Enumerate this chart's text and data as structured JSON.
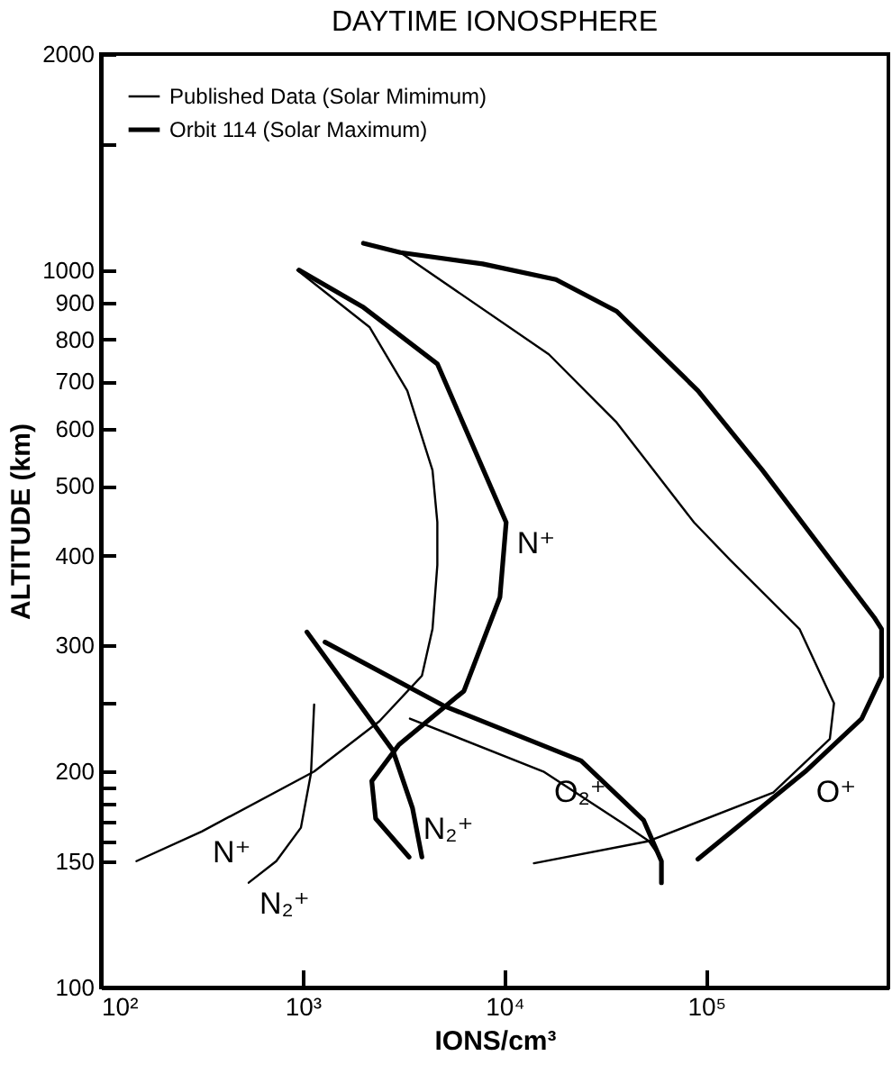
{
  "chart_data": {
    "type": "line",
    "title": "DAYTIME IONOSPHERE",
    "xlabel": "IONS/cm³",
    "ylabel": "ALTITUDE (km)",
    "log": "xy",
    "grid": false,
    "legend": "top left",
    "marker": "none",
    "xlim": [
      100,
      800000
    ],
    "xticks": [
      {
        "value": 100,
        "label": "10²"
      },
      {
        "value": 1000,
        "label": "10³"
      },
      {
        "value": 10000,
        "label": "10⁴"
      },
      {
        "value": 100000,
        "label": "10⁵"
      }
    ],
    "ylim": [
      100,
      2000
    ],
    "yticks": [
      100,
      150,
      {
        "value": 160,
        "label": null
      },
      {
        "value": 170,
        "label": null
      },
      {
        "value": 180,
        "label": null
      },
      {
        "value": 190,
        "label": null
      },
      200,
      {
        "value": 250,
        "label": null
      },
      300,
      400,
      500,
      600,
      700,
      800,
      900,
      1000,
      {
        "value": 1500,
        "label": null
      },
      2000
    ],
    "series": [
      {
        "name": "Published Data (Solar Mimimum)",
        "color": "#000000",
        "x": [
          150,
          316,
          1140,
          2400,
          3900,
          4400,
          4650,
          4650,
          4400,
          3300,
          2150,
          940,
          null,
          540,
          740,
          980,
          1100,
          1140,
          null,
          58000,
          52000,
          39000,
          15600,
          3400,
          null,
          14000,
          52000,
          215000,
          410000,
          430000,
          290000,
          132000,
          87000,
          36000,
          16600,
          3050,
          2000
        ],
        "values": [
          150,
          165,
          200,
          235,
          272,
          316,
          388,
          445,
          526,
          679,
          832,
          1000,
          null,
          140,
          150,
          167,
          199,
          248,
          null,
          153,
          160,
          169,
          200,
          237,
          null,
          149,
          160,
          187,
          222,
          249,
          316,
          394,
          445,
          613,
          763,
          1058,
          1090
        ]
      },
      {
        "name": "Orbit 114 (Solar Maximum)",
        "color": "#000000",
        "x": [
          3370,
          2300,
          2200,
          3000,
          6300,
          9500,
          10200,
          4650,
          1980,
          960,
          null,
          3900,
          3500,
          2800,
          1050,
          null,
          60000,
          60000,
          49000,
          24000,
          5000,
          1290,
          null,
          91000,
          310000,
          590000,
          740000,
          740000,
          680000,
          190000,
          91000,
          36000,
          18000,
          7800,
          3050,
          2000
        ],
        "values": [
          152,
          172,
          194,
          218,
          259,
          350,
          445,
          740,
          889,
          1000,
          null,
          152,
          178,
          214,
          313,
          null,
          140,
          150,
          171,
          207,
          247,
          303,
          null,
          151,
          200,
          237,
          271,
          316,
          328,
          526,
          679,
          876,
          970,
          1020,
          1058,
          1090
        ]
      }
    ],
    "annotations": [
      {
        "text": "N⁺",
        "x": 10200,
        "y": 445
      },
      {
        "text": "N⁺",
        "x": 316,
        "y": 165
      },
      {
        "text": "N₂⁺",
        "x": 540,
        "y": 140
      },
      {
        "text": "N₂⁺",
        "x": 3500,
        "y": 178
      },
      {
        "text": "O₂⁺",
        "x": 15600,
        "y": 200
      },
      {
        "text": "O⁺",
        "x": 310000,
        "y": 200
      }
    ]
  }
}
